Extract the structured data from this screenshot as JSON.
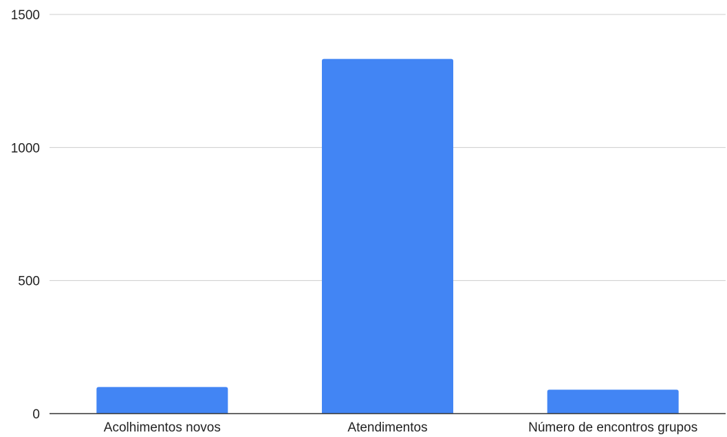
{
  "chart_data": {
    "type": "bar",
    "title": "",
    "xlabel": "",
    "ylabel": "",
    "categories": [
      "Acolhimentos novos",
      "Atendimentos",
      "Número de encontros grupos"
    ],
    "values": [
      100,
      1333,
      90
    ],
    "ylim": [
      0,
      1500
    ],
    "yticks": [
      0,
      500,
      1000,
      1500
    ],
    "grid": true,
    "legend": "none",
    "bar_color": "#4285f4"
  }
}
